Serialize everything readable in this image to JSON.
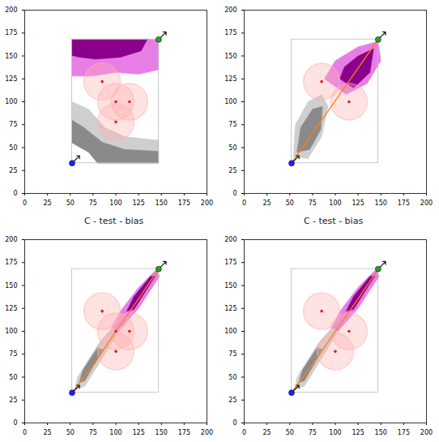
{
  "chart_data": [
    {
      "type": "path_plan",
      "xlim": [
        0,
        200
      ],
      "ylim": [
        0,
        200
      ],
      "xticks": [
        0,
        25,
        50,
        75,
        100,
        125,
        150,
        175,
        200
      ],
      "yticks": [
        0,
        25,
        50,
        75,
        100,
        125,
        150,
        175,
        200
      ],
      "boundary": {
        "x1": 52,
        "y1": 33,
        "x2": 147,
        "y2": 168
      },
      "start": {
        "x": 52,
        "y": 33,
        "color": "#1f1fff"
      },
      "goal": {
        "x": 147,
        "y": 168,
        "color": "#2ca02c"
      },
      "obstacles": {
        "color": "#e02020",
        "radius": 20,
        "zone_color": "#ffb0b0",
        "points": [
          [
            85,
            122
          ],
          [
            100,
            100
          ],
          [
            115,
            100
          ],
          [
            100,
            78
          ]
        ]
      },
      "regions": [
        {
          "color": "#8b008b",
          "points": [
            [
              52,
              168
            ],
            [
              135,
              168
            ],
            [
              128,
              155
            ],
            [
              105,
              148
            ],
            [
              78,
              146
            ],
            [
              60,
              148
            ],
            [
              52,
              150
            ]
          ]
        },
        {
          "color": "#e67ee6",
          "points": [
            [
              52,
              150
            ],
            [
              60,
              148
            ],
            [
              78,
              146
            ],
            [
              105,
              148
            ],
            [
              128,
              155
            ],
            [
              135,
              168
            ],
            [
              147,
              168
            ],
            [
              147,
              135
            ],
            [
              125,
              130
            ],
            [
              100,
              132
            ],
            [
              75,
              128
            ],
            [
              52,
              128
            ]
          ]
        },
        {
          "color": "#cfcfcf",
          "points": [
            [
              52,
              100
            ],
            [
              70,
              92
            ],
            [
              88,
              72
            ],
            [
              110,
              62
            ],
            [
              147,
              58
            ],
            [
              147,
              46
            ],
            [
              110,
              48
            ],
            [
              85,
              56
            ],
            [
              65,
              72
            ],
            [
              52,
              80
            ]
          ]
        },
        {
          "color": "#8a8a8a",
          "points": [
            [
              52,
              80
            ],
            [
              65,
              72
            ],
            [
              85,
              56
            ],
            [
              110,
              48
            ],
            [
              147,
              46
            ],
            [
              147,
              33
            ],
            [
              80,
              33
            ],
            [
              70,
              45
            ],
            [
              52,
              55
            ]
          ]
        }
      ],
      "path": []
    },
    {
      "type": "path_plan",
      "xlim": [
        0,
        200
      ],
      "ylim": [
        0,
        200
      ],
      "xticks": [
        0,
        25,
        50,
        75,
        100,
        125,
        150,
        175,
        200
      ],
      "yticks": [
        0,
        25,
        50,
        75,
        100,
        125,
        150,
        175,
        200
      ],
      "boundary": {
        "x1": 52,
        "y1": 33,
        "x2": 147,
        "y2": 168
      },
      "start": {
        "x": 52,
        "y": 33,
        "color": "#1f1fff"
      },
      "goal": {
        "x": 147,
        "y": 168,
        "color": "#2ca02c"
      },
      "obstacles": {
        "color": "#e02020",
        "radius": 20,
        "zone_color": "#ffb0b0",
        "points": [
          [
            85,
            122
          ],
          [
            115,
            100
          ]
        ]
      },
      "regions": [
        {
          "color": "#cfcfcf",
          "points": [
            [
              54,
              40
            ],
            [
              70,
              38
            ],
            [
              85,
              62
            ],
            [
              92,
              95
            ],
            [
              85,
              108
            ],
            [
              70,
              100
            ],
            [
              56,
              75
            ]
          ]
        },
        {
          "color": "#8a8a8a",
          "points": [
            [
              58,
              45
            ],
            [
              72,
              48
            ],
            [
              84,
              70
            ],
            [
              86,
              95
            ],
            [
              75,
              92
            ],
            [
              62,
              72
            ]
          ]
        },
        {
          "color": "#e67ee6",
          "points": [
            [
              88,
              125
            ],
            [
              112,
              108
            ],
            [
              135,
              120
            ],
            [
              150,
              145
            ],
            [
              147,
              166
            ],
            [
              125,
              160
            ],
            [
              100,
              145
            ]
          ]
        },
        {
          "color": "#8b008b",
          "points": [
            [
              105,
              125
            ],
            [
              120,
              115
            ],
            [
              138,
              132
            ],
            [
              142,
              158
            ],
            [
              125,
              150
            ],
            [
              110,
              138
            ]
          ]
        }
      ],
      "path": [
        [
          52,
          33
        ],
        [
          147,
          168
        ]
      ]
    },
    {
      "type": "path_plan",
      "title": "C - test - bias",
      "xlim": [
        0,
        200
      ],
      "ylim": [
        0,
        200
      ],
      "xticks": [
        0,
        25,
        50,
        75,
        100,
        125,
        150,
        175,
        200
      ],
      "yticks": [
        0,
        25,
        50,
        75,
        100,
        125,
        150,
        175,
        200
      ],
      "boundary": {
        "x1": 52,
        "y1": 33,
        "x2": 147,
        "y2": 168
      },
      "start": {
        "x": 52,
        "y": 33,
        "color": "#1f1fff"
      },
      "goal": {
        "x": 147,
        "y": 168,
        "color": "#2ca02c"
      },
      "obstacles": {
        "color": "#e02020",
        "radius": 20,
        "zone_color": "#ffb0b0",
        "points": [
          [
            85,
            122
          ],
          [
            100,
            100
          ],
          [
            115,
            100
          ],
          [
            100,
            78
          ]
        ]
      },
      "regions": [
        {
          "color": "#cfcfcf",
          "points": [
            [
              55,
              36
            ],
            [
              66,
              40
            ],
            [
              88,
              75
            ],
            [
              103,
              100
            ],
            [
              96,
              104
            ],
            [
              80,
              85
            ],
            [
              58,
              50
            ]
          ]
        },
        {
          "color": "#8a8a8a",
          "points": [
            [
              60,
              44
            ],
            [
              66,
              46
            ],
            [
              86,
              80
            ],
            [
              80,
              82
            ],
            [
              64,
              58
            ]
          ]
        },
        {
          "color": "#e67ee6",
          "points": [
            [
              96,
              104
            ],
            [
              103,
              100
            ],
            [
              125,
              125
            ],
            [
              148,
              160
            ],
            [
              145,
              168
            ],
            [
              125,
              148
            ],
            [
              105,
              122
            ]
          ]
        },
        {
          "color": "#8b008b",
          "points": [
            [
              112,
              122
            ],
            [
              120,
              124
            ],
            [
              143,
              160
            ],
            [
              138,
              160
            ],
            [
              120,
              138
            ]
          ]
        }
      ],
      "path": [
        [
          52,
          33
        ],
        [
          76,
          64
        ],
        [
          100,
          100
        ],
        [
          124,
          134
        ],
        [
          147,
          168
        ]
      ]
    },
    {
      "type": "path_plan",
      "title": "C - test - bias",
      "xlim": [
        0,
        200
      ],
      "ylim": [
        0,
        200
      ],
      "xticks": [
        0,
        25,
        50,
        75,
        100,
        125,
        150,
        175,
        200
      ],
      "yticks": [
        0,
        25,
        50,
        75,
        100,
        125,
        150,
        175,
        200
      ],
      "boundary": {
        "x1": 52,
        "y1": 33,
        "x2": 147,
        "y2": 168
      },
      "start": {
        "x": 52,
        "y": 33,
        "color": "#1f1fff"
      },
      "goal": {
        "x": 147,
        "y": 168,
        "color": "#2ca02c"
      },
      "obstacles": {
        "color": "#e02020",
        "radius": 20,
        "zone_color": "#ffb0b0",
        "points": [
          [
            85,
            122
          ],
          [
            115,
            100
          ],
          [
            100,
            78
          ]
        ]
      },
      "regions": [
        {
          "color": "#cfcfcf",
          "points": [
            [
              55,
              36
            ],
            [
              66,
              40
            ],
            [
              88,
              75
            ],
            [
              103,
              100
            ],
            [
              96,
              104
            ],
            [
              80,
              85
            ],
            [
              58,
              50
            ]
          ]
        },
        {
          "color": "#8a8a8a",
          "points": [
            [
              60,
              44
            ],
            [
              66,
              46
            ],
            [
              86,
              80
            ],
            [
              80,
              82
            ],
            [
              64,
              58
            ]
          ]
        },
        {
          "color": "#e67ee6",
          "points": [
            [
              96,
              104
            ],
            [
              103,
              100
            ],
            [
              125,
              125
            ],
            [
              148,
              160
            ],
            [
              145,
              168
            ],
            [
              125,
              148
            ],
            [
              105,
              122
            ]
          ]
        },
        {
          "color": "#8b008b",
          "points": [
            [
              112,
              122
            ],
            [
              120,
              124
            ],
            [
              143,
              160
            ],
            [
              138,
              160
            ],
            [
              120,
              138
            ]
          ]
        }
      ],
      "path": [
        [
          52,
          33
        ],
        [
          78,
          68
        ],
        [
          100,
          100
        ],
        [
          124,
          134
        ],
        [
          147,
          168
        ]
      ]
    }
  ]
}
